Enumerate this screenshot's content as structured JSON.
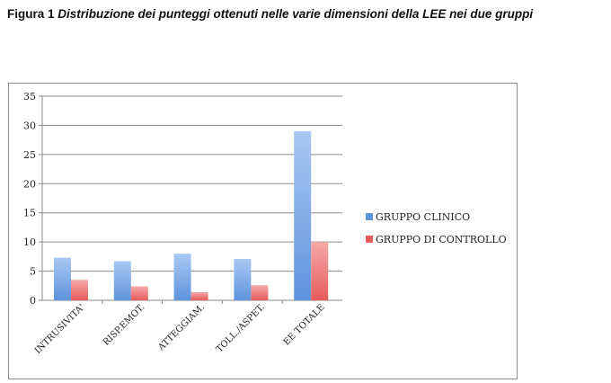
{
  "caption": {
    "lead": "Figura 1",
    "rest": "Distribuzione dei punteggi ottenuti nelle varie dimensioni della LEE nei due gruppi"
  },
  "chart_data": {
    "type": "bar",
    "title": "",
    "xlabel": "",
    "ylabel": "",
    "categories": [
      "INTRUSIVITA'",
      "RISP.EMOT.",
      "ATTEGGIAM.",
      "TOLL./ASPET.",
      "EE TOTALE"
    ],
    "series": [
      {
        "name": "GRUPPO CLINICO",
        "values": [
          7.3,
          6.7,
          8.0,
          7.1,
          29.0
        ],
        "color": "#5f93dc"
      },
      {
        "name": "GRUPPO DI CONTROLLO",
        "values": [
          3.5,
          2.4,
          1.4,
          2.6,
          10.0
        ],
        "color": "#e85c5c"
      }
    ],
    "ylim": [
      0,
      35
    ],
    "yticks": [
      "0",
      "5",
      "10",
      "15",
      "20",
      "25",
      "30",
      "35"
    ],
    "grid": true,
    "legend": "right"
  }
}
